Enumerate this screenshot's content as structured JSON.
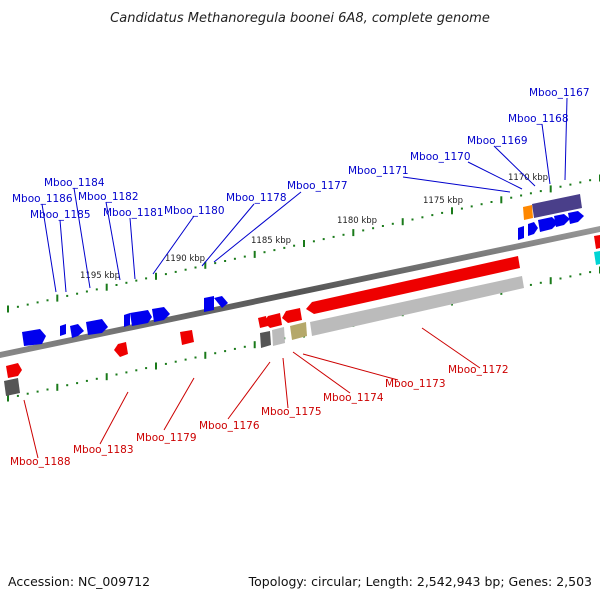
{
  "title": "Candidatus Methanoregula boonei 6A8, complete genome",
  "footer": {
    "accession": "Accession: NC_009712",
    "topology": "Topology: circular; Length: 2,542,943 bp; Genes: 2,503"
  },
  "colors": {
    "forward_gene": "#0000ee",
    "reverse_gene": "#ee0000",
    "forward_label": "#0000cc",
    "reverse_label": "#cc0000",
    "backbone": "#777777",
    "tick": "#1a7a1a",
    "purple_block": "#4a3f8a",
    "orange_block": "#ff8800",
    "gray_block": "#bbbbbb",
    "dark_gray_block": "#555555",
    "khaki_block": "#b5a86a",
    "cyan_block": "#00d4d4"
  },
  "kbp_labels": [
    "1170 kbp",
    "1175 kbp",
    "1180 kbp",
    "1185 kbp",
    "1190 kbp",
    "1195 kbp"
  ],
  "upper_labels": [
    "Mboo_1167",
    "Mboo_1168",
    "Mboo_1169",
    "Mboo_1170",
    "Mboo_1171",
    "Mboo_1177",
    "Mboo_1178",
    "Mboo_1180",
    "Mboo_1181",
    "Mboo_1182",
    "Mboo_1184",
    "Mboo_1186",
    "Mboo_1185"
  ],
  "lower_labels": [
    "Mboo_1172",
    "Mboo_1173",
    "Mboo_1174",
    "Mboo_1175",
    "Mboo_1176",
    "Mboo_1179",
    "Mboo_1183",
    "Mboo_1188"
  ]
}
